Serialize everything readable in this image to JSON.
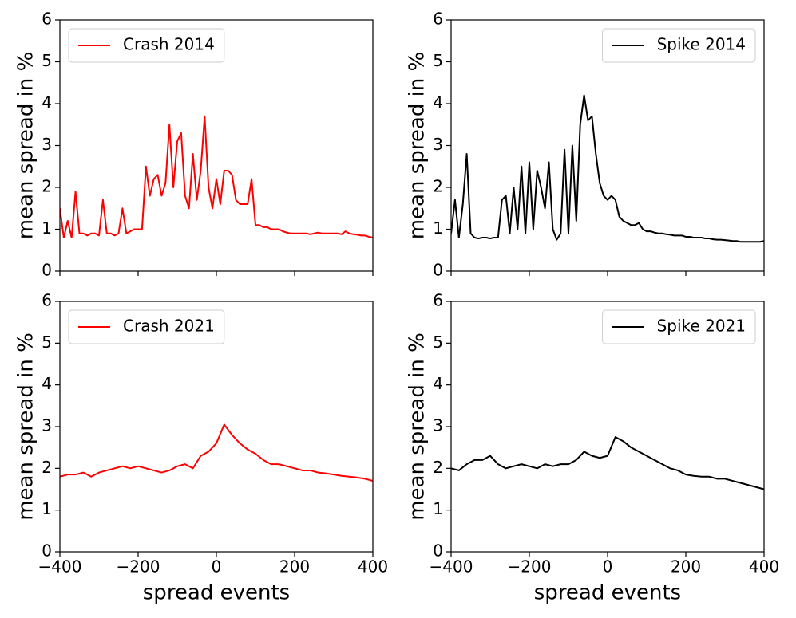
{
  "chart_data": [
    {
      "type": "line",
      "y_label": "mean spread in %",
      "legend": "upper left",
      "xticklabels": false,
      "x": [
        -400,
        -390,
        -380,
        -370,
        -360,
        -350,
        -340,
        -330,
        -320,
        -310,
        -300,
        -290,
        -280,
        -270,
        -260,
        -250,
        -240,
        -230,
        -220,
        -210,
        -200,
        -190,
        -180,
        -170,
        -160,
        -150,
        -140,
        -130,
        -120,
        -110,
        -100,
        -90,
        -80,
        -70,
        -60,
        -50,
        -40,
        -30,
        -20,
        -10,
        0,
        10,
        20,
        30,
        40,
        50,
        60,
        70,
        80,
        90,
        100,
        110,
        120,
        130,
        140,
        150,
        160,
        170,
        180,
        190,
        200,
        210,
        220,
        230,
        240,
        250,
        260,
        270,
        280,
        290,
        300,
        310,
        320,
        330,
        340,
        350,
        360,
        370,
        380,
        390,
        400
      ],
      "series": [
        {
          "name": "Crash 2014",
          "color": "#ff0000",
          "values": [
            1.5,
            0.8,
            1.2,
            0.8,
            1.9,
            0.9,
            0.9,
            0.85,
            0.9,
            0.9,
            0.85,
            1.7,
            0.9,
            0.9,
            0.85,
            0.9,
            1.5,
            0.9,
            0.95,
            1.0,
            1.0,
            1.0,
            2.5,
            1.8,
            2.2,
            2.3,
            1.8,
            2.1,
            3.5,
            2.0,
            3.1,
            3.3,
            1.8,
            1.5,
            2.8,
            1.7,
            2.4,
            3.7,
            2.0,
            1.5,
            2.2,
            1.6,
            2.4,
            2.4,
            2.3,
            1.7,
            1.6,
            1.6,
            1.6,
            2.2,
            1.1,
            1.1,
            1.05,
            1.05,
            1.0,
            1.0,
            1.0,
            0.95,
            0.92,
            0.9,
            0.9,
            0.9,
            0.9,
            0.9,
            0.88,
            0.9,
            0.92,
            0.9,
            0.9,
            0.9,
            0.9,
            0.9,
            0.88,
            0.95,
            0.9,
            0.88,
            0.87,
            0.85,
            0.85,
            0.82,
            0.8
          ]
        }
      ],
      "xlim": [
        -400,
        400
      ],
      "xticks": [
        -400,
        -200,
        0,
        200,
        400
      ],
      "ylim": [
        0,
        6
      ],
      "yticks": [
        0,
        1,
        2,
        3,
        4,
        5,
        6
      ]
    },
    {
      "type": "line",
      "y_label": "mean spread in %",
      "legend": "upper right",
      "xticklabels": false,
      "x": [
        -400,
        -390,
        -380,
        -370,
        -360,
        -350,
        -340,
        -330,
        -320,
        -310,
        -300,
        -290,
        -280,
        -270,
        -260,
        -250,
        -240,
        -230,
        -220,
        -210,
        -200,
        -190,
        -180,
        -170,
        -160,
        -150,
        -140,
        -130,
        -120,
        -110,
        -100,
        -90,
        -80,
        -70,
        -60,
        -50,
        -40,
        -30,
        -20,
        -10,
        0,
        10,
        20,
        30,
        40,
        50,
        60,
        70,
        80,
        90,
        100,
        110,
        120,
        130,
        140,
        150,
        160,
        170,
        180,
        190,
        200,
        210,
        220,
        230,
        240,
        250,
        260,
        270,
        280,
        290,
        300,
        310,
        320,
        330,
        340,
        350,
        360,
        370,
        380,
        390,
        400
      ],
      "series": [
        {
          "name": "Spike 2014",
          "color": "#000000",
          "values": [
            0.9,
            1.7,
            0.8,
            1.6,
            2.8,
            0.9,
            0.8,
            0.78,
            0.8,
            0.8,
            0.78,
            0.8,
            0.8,
            1.7,
            1.8,
            0.9,
            2.0,
            1.0,
            2.5,
            0.9,
            2.6,
            1.0,
            2.4,
            2.0,
            1.5,
            2.6,
            1.0,
            0.75,
            0.9,
            2.9,
            0.9,
            3.0,
            1.2,
            3.5,
            4.2,
            3.6,
            3.7,
            2.8,
            2.1,
            1.8,
            1.7,
            1.8,
            1.7,
            1.3,
            1.2,
            1.15,
            1.1,
            1.1,
            1.15,
            1.0,
            0.95,
            0.95,
            0.92,
            0.9,
            0.9,
            0.88,
            0.87,
            0.85,
            0.85,
            0.85,
            0.82,
            0.82,
            0.8,
            0.8,
            0.8,
            0.78,
            0.78,
            0.76,
            0.75,
            0.75,
            0.74,
            0.73,
            0.72,
            0.72,
            0.7,
            0.7,
            0.7,
            0.7,
            0.7,
            0.7,
            0.72
          ]
        }
      ],
      "xlim": [
        -400,
        400
      ],
      "xticks": [
        -400,
        -200,
        0,
        200,
        400
      ],
      "ylim": [
        0,
        6
      ],
      "yticks": [
        0,
        1,
        2,
        3,
        4,
        5,
        6
      ]
    },
    {
      "type": "line",
      "x_label": "spread events",
      "y_label": "mean spread in %",
      "legend": "upper left",
      "x": [
        -400,
        -380,
        -360,
        -340,
        -320,
        -300,
        -280,
        -260,
        -240,
        -220,
        -200,
        -180,
        -160,
        -140,
        -120,
        -100,
        -80,
        -60,
        -40,
        -20,
        0,
        20,
        40,
        60,
        80,
        100,
        120,
        140,
        160,
        180,
        200,
        220,
        240,
        260,
        280,
        300,
        320,
        340,
        360,
        380,
        400
      ],
      "series": [
        {
          "name": "Crash 2021",
          "color": "#ff0000",
          "values": [
            1.8,
            1.85,
            1.85,
            1.9,
            1.8,
            1.9,
            1.95,
            2.0,
            2.05,
            2.0,
            2.05,
            2.0,
            1.95,
            1.9,
            1.95,
            2.05,
            2.1,
            2.0,
            2.3,
            2.4,
            2.6,
            3.05,
            2.8,
            2.6,
            2.45,
            2.35,
            2.2,
            2.1,
            2.1,
            2.05,
            2.0,
            1.95,
            1.95,
            1.9,
            1.88,
            1.85,
            1.82,
            1.8,
            1.78,
            1.75,
            1.7
          ]
        }
      ],
      "xlim": [
        -400,
        400
      ],
      "xticks": [
        {
          "value": -400,
          "label": "−400"
        },
        {
          "value": -200,
          "label": "−200"
        },
        0,
        200,
        400
      ],
      "ylim": [
        0,
        6
      ],
      "yticks": [
        0,
        1,
        2,
        3,
        4,
        5,
        6
      ]
    },
    {
      "type": "line",
      "x_label": "spread events",
      "y_label": "mean spread in %",
      "legend": "upper right",
      "x": [
        -400,
        -380,
        -360,
        -340,
        -320,
        -300,
        -280,
        -260,
        -240,
        -220,
        -200,
        -180,
        -160,
        -140,
        -120,
        -100,
        -80,
        -60,
        -40,
        -20,
        0,
        20,
        40,
        60,
        80,
        100,
        120,
        140,
        160,
        180,
        200,
        220,
        240,
        260,
        280,
        300,
        320,
        340,
        360,
        380,
        400
      ],
      "series": [
        {
          "name": "Spike 2021",
          "color": "#000000",
          "values": [
            2.0,
            1.95,
            2.1,
            2.2,
            2.2,
            2.3,
            2.1,
            2.0,
            2.05,
            2.1,
            2.05,
            2.0,
            2.1,
            2.05,
            2.1,
            2.1,
            2.2,
            2.4,
            2.3,
            2.25,
            2.3,
            2.75,
            2.65,
            2.5,
            2.4,
            2.3,
            2.2,
            2.1,
            2.0,
            1.95,
            1.85,
            1.82,
            1.8,
            1.8,
            1.75,
            1.75,
            1.7,
            1.65,
            1.6,
            1.55,
            1.5
          ]
        }
      ],
      "xlim": [
        -400,
        400
      ],
      "xticks": [
        {
          "value": -400,
          "label": "−400"
        },
        {
          "value": -200,
          "label": "−200"
        },
        0,
        200,
        400
      ],
      "ylim": [
        0,
        6
      ],
      "yticks": [
        0,
        1,
        2,
        3,
        4,
        5,
        6
      ]
    }
  ]
}
